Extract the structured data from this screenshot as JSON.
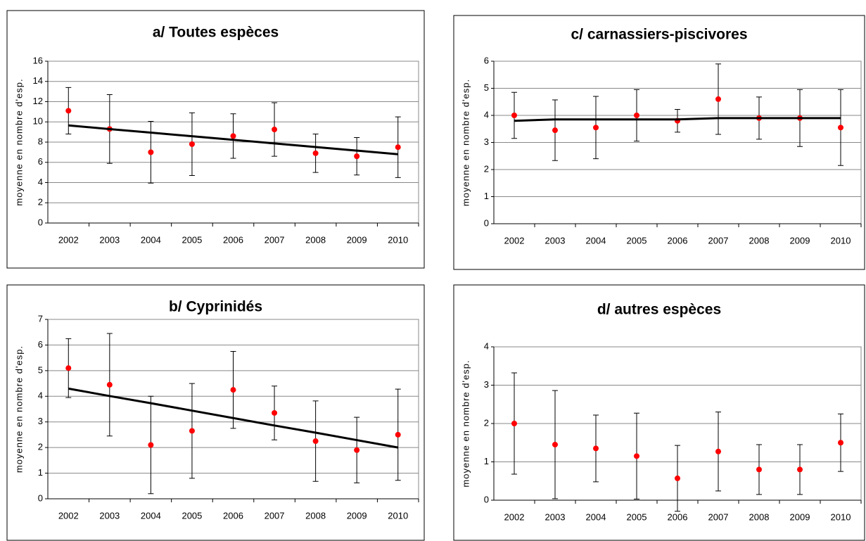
{
  "chart_data": [
    {
      "type": "scatter",
      "title": "a/ Toutes espèces",
      "y_label": "moyenne en nombre d'esp.",
      "categories": [
        "2002",
        "2003",
        "2004",
        "2005",
        "2006",
        "2007",
        "2008",
        "2009",
        "2010"
      ],
      "ylim": [
        0,
        16
      ],
      "yticks": [
        0,
        2,
        4,
        6,
        8,
        10,
        12,
        14,
        16
      ],
      "grid": true,
      "series": [
        {
          "style": "points",
          "color": "#ff0000",
          "values": [
            11.1,
            9.3,
            7.0,
            7.8,
            8.6,
            9.25,
            6.9,
            6.6,
            7.5
          ],
          "errors": [
            2.3,
            3.4,
            3.05,
            3.1,
            2.2,
            2.65,
            1.9,
            1.85,
            3.0
          ]
        },
        {
          "style": "line",
          "color": "#000000",
          "values": [
            9.65,
            9.29,
            8.94,
            8.58,
            8.23,
            7.87,
            7.51,
            7.16,
            6.8
          ]
        }
      ]
    },
    {
      "type": "scatter",
      "title": "c/ carnassiers-piscivores",
      "y_label": "moyenne en nombre d'esp.",
      "categories": [
        "2002",
        "2003",
        "2004",
        "2005",
        "2006",
        "2007",
        "2008",
        "2009",
        "2010"
      ],
      "ylim": [
        0,
        6
      ],
      "yticks": [
        0,
        1,
        2,
        3,
        4,
        5,
        6
      ],
      "grid": true,
      "series": [
        {
          "style": "points",
          "color": "#ff0000",
          "values": [
            4.0,
            3.45,
            3.55,
            4.0,
            3.8,
            4.6,
            3.9,
            3.9,
            3.55
          ],
          "errors": [
            0.85,
            1.12,
            1.15,
            0.95,
            0.42,
            1.3,
            0.78,
            1.05,
            1.4
          ]
        },
        {
          "style": "line",
          "color": "#000000",
          "values": [
            3.8,
            3.85,
            3.85,
            3.85,
            3.85,
            3.9,
            3.9,
            3.9,
            3.9
          ]
        }
      ]
    },
    {
      "type": "scatter",
      "title": "b/ Cyprinidés",
      "y_label": "moyenne en nombre d'esp.",
      "categories": [
        "2002",
        "2003",
        "2004",
        "2005",
        "2006",
        "2007",
        "2008",
        "2009",
        "2010"
      ],
      "ylim": [
        0,
        7
      ],
      "yticks": [
        0,
        1,
        2,
        3,
        4,
        5,
        6,
        7
      ],
      "grid": true,
      "series": [
        {
          "style": "points",
          "color": "#ff0000",
          "values": [
            5.1,
            4.45,
            2.1,
            2.65,
            4.25,
            3.35,
            2.25,
            1.9,
            2.5
          ],
          "errors": [
            1.15,
            2.0,
            1.9,
            1.85,
            1.5,
            1.05,
            1.57,
            1.28,
            1.78
          ]
        },
        {
          "style": "line",
          "color": "#000000",
          "values": [
            4.3,
            4.01,
            3.73,
            3.44,
            3.15,
            2.86,
            2.58,
            2.29,
            2.0
          ]
        }
      ]
    },
    {
      "type": "scatter",
      "title": "d/ autres espèces",
      "y_label": "moyenne en nombre d'esp.",
      "categories": [
        "2002",
        "2003",
        "2004",
        "2005",
        "2006",
        "2007",
        "2008",
        "2009",
        "2010"
      ],
      "ylim": [
        0,
        4
      ],
      "yticks": [
        0,
        1,
        2,
        3,
        4
      ],
      "grid": true,
      "series": [
        {
          "style": "points",
          "color": "#ff0000",
          "values": [
            2.0,
            1.45,
            1.35,
            1.15,
            0.57,
            1.27,
            0.8,
            0.8,
            1.5
          ],
          "errors": [
            1.32,
            1.41,
            0.87,
            1.12,
            0.86,
            1.03,
            0.65,
            0.65,
            0.75
          ]
        }
      ]
    }
  ]
}
